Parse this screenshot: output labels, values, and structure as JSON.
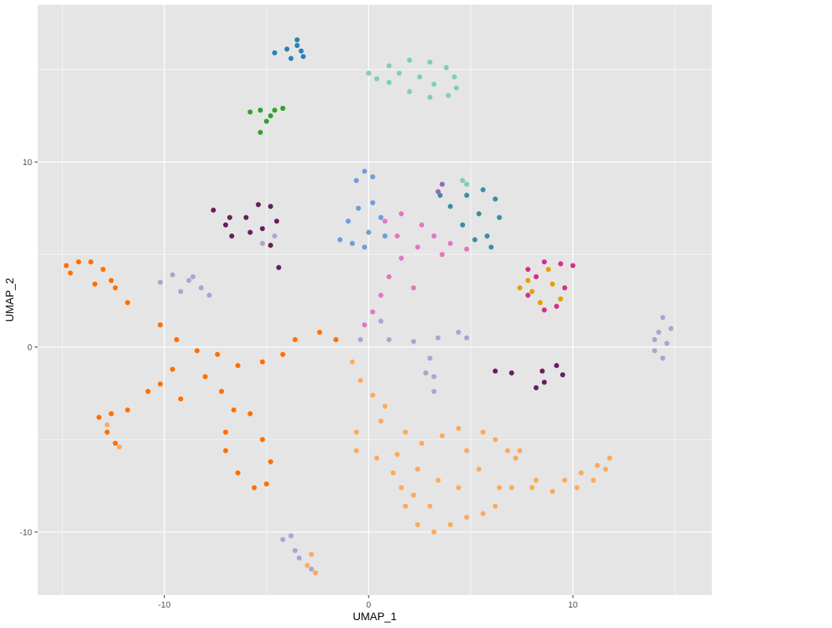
{
  "chart_data": {
    "type": "scatter",
    "title": "",
    "xlabel": "UMAP_1",
    "ylabel": "UMAP_2",
    "xlim": [
      -16.2,
      16.8
    ],
    "ylim": [
      -13.4,
      18.5
    ],
    "x_ticks": [
      -10,
      0,
      10
    ],
    "x_tick_labels": [
      "-10",
      "0",
      "10"
    ],
    "y_ticks": [
      -10,
      0,
      10
    ],
    "y_tick_labels": [
      "-10",
      "0",
      "10"
    ],
    "grid": true,
    "legend": "none",
    "panel_background": "#e5e5e5",
    "grid_color": "#ffffff",
    "series": [
      {
        "color": "#7fcdbb",
        "points": [
          [
            0,
            14.8
          ],
          [
            1,
            15.2
          ],
          [
            2,
            15.5
          ],
          [
            3,
            15.4
          ],
          [
            3.8,
            15.1
          ],
          [
            4.2,
            14.6
          ],
          [
            4.3,
            14.0
          ],
          [
            3.9,
            13.6
          ],
          [
            3.0,
            13.5
          ],
          [
            2.0,
            13.8
          ],
          [
            1.0,
            14.3
          ],
          [
            2.5,
            14.6
          ],
          [
            1.5,
            14.8
          ],
          [
            3.2,
            14.2
          ],
          [
            0.4,
            14.5
          ],
          [
            4.8,
            8.8
          ],
          [
            4.6,
            9.0
          ]
        ]
      },
      {
        "color": "#2c7fb8",
        "points": [
          [
            -4.6,
            15.9
          ],
          [
            -4.0,
            16.1
          ],
          [
            -3.5,
            16.6
          ],
          [
            -3.3,
            16.0
          ],
          [
            -3.2,
            15.7
          ],
          [
            -3.8,
            15.6
          ],
          [
            -3.5,
            16.3
          ]
        ]
      },
      {
        "color": "#33a02c",
        "points": [
          [
            -5.8,
            12.7
          ],
          [
            -5.3,
            12.8
          ],
          [
            -4.6,
            12.8
          ],
          [
            -4.2,
            12.9
          ],
          [
            -5.0,
            12.2
          ],
          [
            -5.3,
            11.6
          ],
          [
            -4.8,
            12.5
          ]
        ]
      },
      {
        "color": "#6a1e5e",
        "points": [
          [
            -7.6,
            7.4
          ],
          [
            -6.8,
            7.0
          ],
          [
            -6.0,
            7.0
          ],
          [
            -5.4,
            7.7
          ],
          [
            -4.8,
            7.6
          ],
          [
            -4.5,
            6.8
          ],
          [
            -5.2,
            6.4
          ],
          [
            -5.8,
            6.2
          ],
          [
            -6.7,
            6.0
          ],
          [
            -7.0,
            6.6
          ],
          [
            -4.8,
            5.5
          ],
          [
            -4.4,
            4.3
          ],
          [
            8.5,
            -1.3
          ],
          [
            7.0,
            -1.4
          ],
          [
            6.2,
            -1.3
          ],
          [
            8.2,
            -2.2
          ],
          [
            9.5,
            -1.5
          ],
          [
            9.2,
            -1.0
          ],
          [
            8.6,
            -1.9
          ]
        ]
      },
      {
        "color": "#6a9fd8",
        "points": [
          [
            -1.4,
            5.8
          ],
          [
            -1.0,
            6.8
          ],
          [
            -0.5,
            7.5
          ],
          [
            0.2,
            7.8
          ],
          [
            0.6,
            7.0
          ],
          [
            0.0,
            6.2
          ],
          [
            -0.8,
            5.6
          ],
          [
            -0.2,
            5.4
          ],
          [
            0.8,
            6.0
          ],
          [
            -0.2,
            9.5
          ],
          [
            -0.6,
            9.0
          ],
          [
            0.2,
            9.2
          ]
        ]
      },
      {
        "color": "#e377c2",
        "points": [
          [
            0.8,
            6.8
          ],
          [
            1.6,
            7.2
          ],
          [
            2.6,
            6.6
          ],
          [
            3.2,
            6.0
          ],
          [
            4.0,
            5.6
          ],
          [
            4.8,
            5.3
          ],
          [
            3.6,
            5.0
          ],
          [
            2.4,
            5.4
          ],
          [
            1.6,
            4.8
          ],
          [
            1.0,
            3.8
          ],
          [
            0.6,
            2.8
          ],
          [
            0.2,
            1.9
          ],
          [
            -0.2,
            1.2
          ],
          [
            2.2,
            3.2
          ],
          [
            1.4,
            6.0
          ]
        ]
      },
      {
        "color": "#3c8ea0",
        "points": [
          [
            4.0,
            7.6
          ],
          [
            4.8,
            8.2
          ],
          [
            5.6,
            8.5
          ],
          [
            6.2,
            8.0
          ],
          [
            6.4,
            7.0
          ],
          [
            5.8,
            6.0
          ],
          [
            5.2,
            5.8
          ],
          [
            4.6,
            6.6
          ],
          [
            5.4,
            7.2
          ],
          [
            3.5,
            8.2
          ],
          [
            6.0,
            5.4
          ]
        ]
      },
      {
        "color": "#9467bd",
        "points": [
          [
            3.4,
            8.4
          ],
          [
            3.6,
            8.8
          ]
        ]
      },
      {
        "color": "#d62e8a",
        "points": [
          [
            7.8,
            4.2
          ],
          [
            8.6,
            4.6
          ],
          [
            9.4,
            4.5
          ],
          [
            10.0,
            4.4
          ],
          [
            9.6,
            3.2
          ],
          [
            9.2,
            2.2
          ],
          [
            8.6,
            2.0
          ],
          [
            7.8,
            2.8
          ],
          [
            8.2,
            3.8
          ]
        ]
      },
      {
        "color": "#e69f00",
        "points": [
          [
            7.4,
            3.2
          ],
          [
            8.0,
            3.0
          ],
          [
            8.4,
            2.4
          ],
          [
            9.0,
            3.4
          ],
          [
            8.8,
            4.2
          ],
          [
            7.8,
            3.6
          ],
          [
            9.4,
            2.6
          ]
        ]
      },
      {
        "color": "#b3a1d1",
        "points": [
          [
            -10.2,
            3.5
          ],
          [
            -9.6,
            3.9
          ],
          [
            -8.8,
            3.6
          ],
          [
            -8.2,
            3.2
          ],
          [
            -7.8,
            2.8
          ],
          [
            -8.6,
            3.8
          ],
          [
            -9.2,
            3.0
          ],
          [
            -0.4,
            0.4
          ],
          [
            1.0,
            0.4
          ],
          [
            2.2,
            0.3
          ],
          [
            3.4,
            0.5
          ],
          [
            4.4,
            0.8
          ],
          [
            4.8,
            0.5
          ],
          [
            3.0,
            -0.6
          ],
          [
            3.2,
            -1.6
          ],
          [
            3.2,
            -2.4
          ],
          [
            2.8,
            -1.4
          ],
          [
            14.4,
            1.6
          ],
          [
            14.2,
            0.8
          ],
          [
            14.6,
            0.2
          ],
          [
            14.8,
            1.0
          ],
          [
            14.0,
            0.4
          ],
          [
            14.4,
            -0.6
          ],
          [
            14.0,
            -0.2
          ],
          [
            -3.8,
            -10.2
          ],
          [
            -3.6,
            -11.0
          ],
          [
            -3.4,
            -11.4
          ],
          [
            -4.2,
            -10.4
          ],
          [
            -2.8,
            -12.0
          ],
          [
            -4.6,
            6.0
          ],
          [
            -5.2,
            5.6
          ],
          [
            0.6,
            1.4
          ]
        ]
      },
      {
        "color": "#ff6f00",
        "points": [
          [
            -14.8,
            4.4
          ],
          [
            -14.2,
            4.6
          ],
          [
            -13.6,
            4.6
          ],
          [
            -13.0,
            4.2
          ],
          [
            -12.6,
            3.6
          ],
          [
            -12.4,
            3.2
          ],
          [
            -13.4,
            3.4
          ],
          [
            -14.6,
            4.0
          ],
          [
            -11.8,
            2.4
          ],
          [
            -10.2,
            1.2
          ],
          [
            -9.4,
            0.4
          ],
          [
            -8.4,
            -0.2
          ],
          [
            -7.4,
            -0.4
          ],
          [
            -6.4,
            -1.0
          ],
          [
            -5.2,
            -0.8
          ],
          [
            -4.2,
            -0.4
          ],
          [
            -3.6,
            0.4
          ],
          [
            -2.4,
            0.8
          ],
          [
            -1.6,
            0.4
          ],
          [
            -9.6,
            -1.2
          ],
          [
            -10.8,
            -2.4
          ],
          [
            -11.8,
            -3.4
          ],
          [
            -12.6,
            -3.6
          ],
          [
            -13.2,
            -3.8
          ],
          [
            -12.8,
            -4.6
          ],
          [
            -12.4,
            -5.2
          ],
          [
            -9.2,
            -2.8
          ],
          [
            -7.2,
            -2.4
          ],
          [
            -6.6,
            -3.4
          ],
          [
            -7.0,
            -4.6
          ],
          [
            -7.0,
            -5.6
          ],
          [
            -6.4,
            -6.8
          ],
          [
            -5.6,
            -7.6
          ],
          [
            -5.0,
            -7.4
          ],
          [
            -4.8,
            -6.2
          ],
          [
            -5.2,
            -5.0
          ],
          [
            -5.8,
            -3.6
          ],
          [
            -8.0,
            -1.6
          ],
          [
            -10.2,
            -2.0
          ]
        ]
      },
      {
        "color": "#fdaa5b",
        "points": [
          [
            -0.8,
            -0.8
          ],
          [
            -0.4,
            -1.8
          ],
          [
            0.2,
            -2.6
          ],
          [
            0.8,
            -3.2
          ],
          [
            0.6,
            -4.0
          ],
          [
            -0.6,
            -4.6
          ],
          [
            -0.6,
            -5.6
          ],
          [
            0.4,
            -6.0
          ],
          [
            1.2,
            -6.8
          ],
          [
            1.6,
            -7.6
          ],
          [
            1.8,
            -8.6
          ],
          [
            2.4,
            -9.6
          ],
          [
            3.2,
            -10.0
          ],
          [
            4.0,
            -9.6
          ],
          [
            4.8,
            -9.2
          ],
          [
            5.6,
            -9.0
          ],
          [
            6.2,
            -8.6
          ],
          [
            6.4,
            -7.6
          ],
          [
            7.0,
            -7.6
          ],
          [
            8.0,
            -7.6
          ],
          [
            9.0,
            -7.8
          ],
          [
            10.2,
            -7.6
          ],
          [
            11.0,
            -7.2
          ],
          [
            11.6,
            -6.6
          ],
          [
            11.8,
            -6.0
          ],
          [
            11.2,
            -6.4
          ],
          [
            10.4,
            -6.8
          ],
          [
            9.6,
            -7.2
          ],
          [
            8.2,
            -7.2
          ],
          [
            7.2,
            -6.0
          ],
          [
            7.4,
            -5.6
          ],
          [
            6.8,
            -5.6
          ],
          [
            6.2,
            -5.0
          ],
          [
            5.6,
            -4.6
          ],
          [
            4.4,
            -4.4
          ],
          [
            3.6,
            -4.8
          ],
          [
            2.6,
            -5.2
          ],
          [
            1.8,
            -4.6
          ],
          [
            1.4,
            -5.8
          ],
          [
            2.4,
            -6.6
          ],
          [
            3.4,
            -7.2
          ],
          [
            4.4,
            -7.6
          ],
          [
            5.4,
            -6.6
          ],
          [
            4.8,
            -5.6
          ],
          [
            3.0,
            -8.6
          ],
          [
            2.2,
            -8.0
          ],
          [
            -12.2,
            -5.4
          ],
          [
            -12.8,
            -4.2
          ],
          [
            -3.0,
            -11.8
          ],
          [
            -2.6,
            -12.2
          ],
          [
            -2.8,
            -11.2
          ]
        ]
      }
    ]
  }
}
